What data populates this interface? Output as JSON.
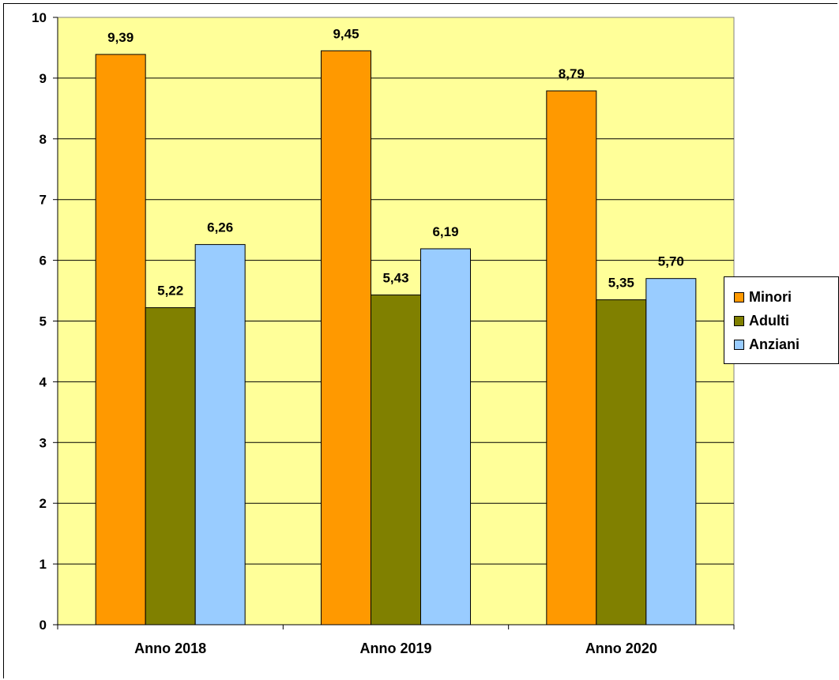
{
  "chart_data": {
    "type": "bar",
    "title": "",
    "xlabel": "",
    "ylabel": "",
    "categories": [
      "Anno 2018",
      "Anno 2019",
      "Anno 2020"
    ],
    "series": [
      {
        "name": "Minori",
        "color": "#FF9900",
        "values": [
          9.39,
          9.45,
          8.79
        ],
        "labels": [
          "9,39",
          "9,45",
          "8,79"
        ]
      },
      {
        "name": "Adulti",
        "color": "#808000",
        "values": [
          5.22,
          5.43,
          5.35
        ],
        "labels": [
          "5,22",
          "5,43",
          "5,35"
        ]
      },
      {
        "name": "Anziani",
        "color": "#99CCFF",
        "values": [
          6.26,
          6.19,
          5.7
        ],
        "labels": [
          "6,26",
          "6,19",
          "5,70"
        ]
      }
    ],
    "ylim": [
      0,
      10
    ],
    "yticks": [
      "0",
      "1",
      "2",
      "3",
      "4",
      "5",
      "6",
      "7",
      "8",
      "9",
      "10"
    ],
    "grid": true,
    "plot_background": "#FFFF99",
    "legend_position": "right"
  }
}
